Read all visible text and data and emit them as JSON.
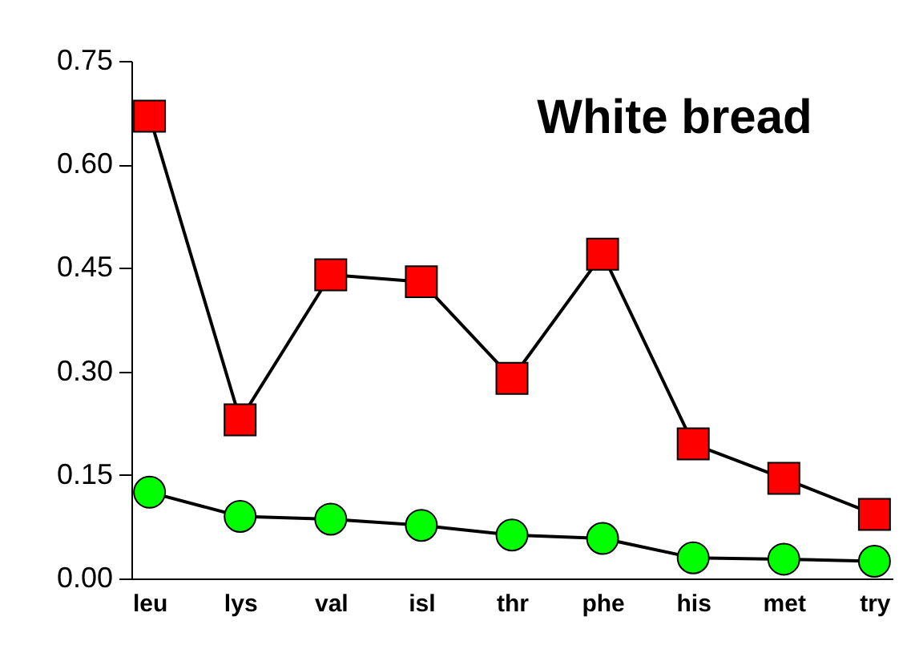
{
  "chart_data": {
    "type": "line",
    "title": "White bread",
    "categories": [
      "leu",
      "lys",
      "val",
      "isl",
      "thr",
      "phe",
      "his",
      "met",
      "try"
    ],
    "series": [
      {
        "color": "#ff0000",
        "marker": "square",
        "values": [
          0.67,
          0.23,
          0.44,
          0.43,
          0.29,
          0.47,
          0.195,
          0.145,
          0.093
        ]
      },
      {
        "color": "#00ff00",
        "marker": "circle",
        "values": [
          0.125,
          0.09,
          0.086,
          0.077,
          0.063,
          0.058,
          0.03,
          0.028,
          0.025
        ]
      }
    ],
    "ylim": [
      0,
      0.75
    ],
    "yticks": [
      {
        "value": 0,
        "label": "0.00"
      },
      {
        "value": 0.15,
        "label": "0.15"
      },
      {
        "value": 0.3,
        "label": "0.30"
      },
      {
        "value": 0.45,
        "label": "0.45"
      },
      {
        "value": 0.6,
        "label": "0.60"
      },
      {
        "value": 0.75,
        "label": "0.75"
      }
    ],
    "grid": false,
    "legend": false,
    "line_style": "solid"
  }
}
